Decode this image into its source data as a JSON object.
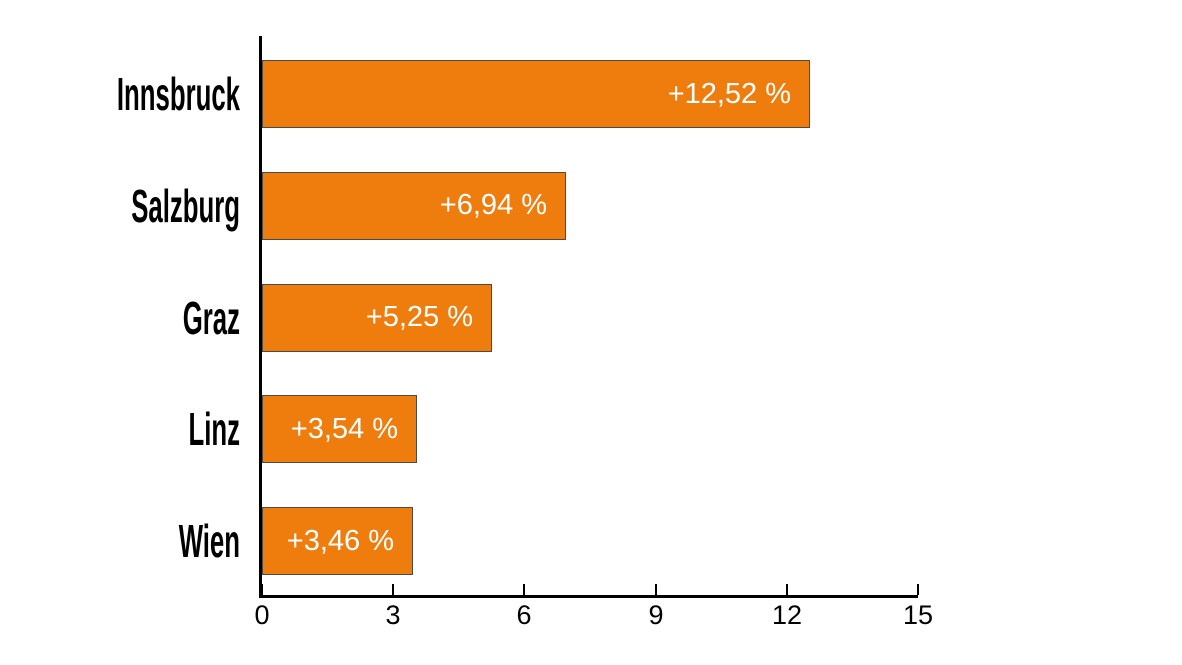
{
  "chart_data": {
    "type": "bar",
    "orientation": "horizontal",
    "title": "",
    "xlabel": "",
    "ylabel": "",
    "categories": [
      "Innsbruck",
      "Salzburg",
      "Graz",
      "Linz",
      "Wien"
    ],
    "values": [
      12.52,
      6.94,
      5.25,
      3.54,
      3.46
    ],
    "bar_labels": [
      "+12,52 %",
      "+6,94 %",
      "+5,25 %",
      "+3,54 %",
      "+3,46 %"
    ],
    "xlim": [
      0,
      15
    ],
    "x_ticks": [
      0,
      3,
      6,
      9,
      12,
      15
    ],
    "x_tick_labels": [
      "0",
      "3",
      "6",
      "9",
      "12",
      "15"
    ],
    "grid": false,
    "legend": false,
    "colors": {
      "bar_fill": "#ee7d0e",
      "bar_border": "#4f4b41",
      "value_label": "#ffffff",
      "axis": "#000000",
      "category_label": "#000000",
      "background": "#ffffff"
    }
  }
}
